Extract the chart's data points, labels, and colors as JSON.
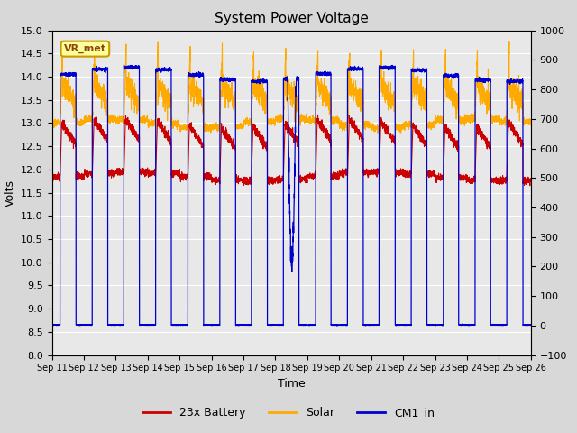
{
  "title": "System Power Voltage",
  "xlabel": "Time",
  "ylabel": "Volts",
  "ylim_left": [
    8.0,
    15.0
  ],
  "ylim_right": [
    -100,
    1000
  ],
  "yticks_left": [
    8.0,
    8.5,
    9.0,
    9.5,
    10.0,
    10.5,
    11.0,
    11.5,
    12.0,
    12.5,
    13.0,
    13.5,
    14.0,
    14.5,
    15.0
  ],
  "yticks_right": [
    -100,
    0,
    100,
    200,
    300,
    400,
    500,
    600,
    700,
    800,
    900,
    1000
  ],
  "xtick_labels": [
    "Sep 11",
    "Sep 12",
    "Sep 13",
    "Sep 14",
    "Sep 15",
    "Sep 16",
    "Sep 17",
    "Sep 18",
    "Sep 19",
    "Sep 20",
    "Sep 21",
    "Sep 22",
    "Sep 23",
    "Sep 24",
    "Sep 25",
    "Sep 26"
  ],
  "color_battery": "#cc0000",
  "color_solar": "#ffaa00",
  "color_cm1": "#0000cc",
  "background_color": "#d8d8d8",
  "plot_bg_color": "#e8e8e8",
  "annotation_text": "VR_met",
  "legend_labels": [
    "23x Battery",
    "Solar",
    "CM1_in"
  ],
  "n_days": 15,
  "battery_night": 11.85,
  "battery_day": 13.0,
  "solar_night": 13.0,
  "solar_peak": 14.65,
  "cm1_night": 8.65,
  "cm1_day": 14.05,
  "figwidth": 6.4,
  "figheight": 4.8,
  "dpi": 100
}
